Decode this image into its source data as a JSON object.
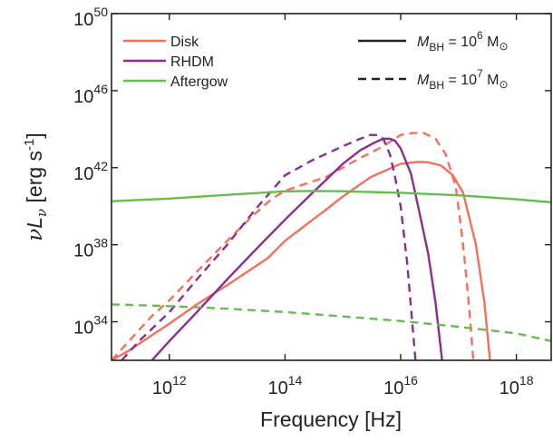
{
  "chart_data": {
    "type": "line",
    "title": "",
    "xlabel": "Frequency [Hz]",
    "ylabel": "νL_ν [erg s^-1]",
    "ylabel_parts": {
      "nu": "ν",
      "L": "L",
      "sub": "ν",
      "units": " [erg s",
      "sup": "-1",
      "close": "]"
    },
    "x_scale": "log",
    "y_scale": "log",
    "xlim": [
      100000000000.0,
      4e+18
    ],
    "ylim": [
      1e+32,
      1e+50
    ],
    "x_ticks": [
      {
        "value": 1000000000000.0,
        "base": "10",
        "exp": "12"
      },
      {
        "value": 100000000000000.0,
        "base": "10",
        "exp": "14"
      },
      {
        "value": 1e+16,
        "base": "10",
        "exp": "16"
      },
      {
        "value": 1e+18,
        "base": "10",
        "exp": "18"
      }
    ],
    "y_ticks": [
      {
        "value": 1e+34,
        "base": "10",
        "exp": "34"
      },
      {
        "value": 1e+38,
        "base": "10",
        "exp": "38"
      },
      {
        "value": 1e+42,
        "base": "10",
        "exp": "42"
      },
      {
        "value": 1e+46,
        "base": "10",
        "exp": "46"
      },
      {
        "value": 1e+50,
        "base": "10",
        "exp": "50"
      }
    ],
    "grid": false,
    "legend_placement": "top-left",
    "style_legend_placement": "top-right",
    "legend": [
      {
        "label": "Disk",
        "color": "#f4705a"
      },
      {
        "label": "RHDM",
        "color": "#8b2d8f"
      },
      {
        "label": "Aftergow",
        "color": "#63bd4f"
      }
    ],
    "style_legend": [
      {
        "dash": "solid",
        "prefix": "M",
        "sub": "BH",
        "eq": " = 10",
        "exp": "6",
        "unit": " M",
        "sun": "⊙"
      },
      {
        "dash": "dashed",
        "prefix": "M",
        "sub": "BH",
        "eq": " = 10",
        "exp": "7",
        "unit": " M",
        "sun": "⊙"
      }
    ],
    "series": [
      {
        "name": "Disk",
        "mass": "10^6",
        "color": "#f4705a",
        "dash": "solid",
        "x": [
          100000000000.0,
          200000000000.0,
          500000000000.0,
          1000000000000.0,
          3000000000000.0,
          10000000000000.0,
          50000000000000.0,
          100000000000000.0,
          500000000000000.0,
          1000000000000000.0,
          3000000000000000.0,
          1e+16,
          2e+16,
          3e+16,
          5e+16,
          8e+16,
          1.2e+17,
          2e+17,
          2.8e+17,
          3.5e+17
        ],
        "y": [
          1e+32,
          3.2e+32,
          2e+33,
          8e+33,
          8e+34,
          8e+35,
          2e+37,
          1.6e+38,
          6.3e+39,
          3.2e+40,
          3.2e+41,
          1.6e+42,
          2e+42,
          1.9e+42,
          1.3e+42,
          4e+41,
          5e+40,
          1e+38,
          1e+35,
          1e+32
        ]
      },
      {
        "name": "Disk",
        "mass": "10^7",
        "color": "#f4705a",
        "dash": "dashed",
        "x": [
          100000000000.0,
          200000000000.0,
          500000000000.0,
          1000000000000.0,
          3000000000000.0,
          10000000000000.0,
          30000000000000.0,
          60000000000000.0,
          100000000000000.0,
          200000000000000.0,
          500000000000000.0,
          1000000000000000.0,
          2000000000000000.0,
          5000000000000000.0,
          1e+16,
          1.6e+16,
          2.5e+16,
          4e+16,
          6e+16,
          9e+16,
          1.2e+17,
          1.5e+17,
          1.8e+17
        ],
        "y": [
          1e+32,
          1e+33,
          2e+34,
          1.3e+35,
          4e+36,
          1.6e+38,
          4e+39,
          2.5e+40,
          6.3e+40,
          1.3e+41,
          3.2e+41,
          1e+42,
          3.2e+42,
          1.3e+43,
          5e+43,
          6.3e+43,
          6.3e+43,
          3.2e+43,
          5e+42,
          1e+41,
          1e+38,
          1e+35,
          1e+32
        ]
      },
      {
        "name": "RHDM",
        "mass": "10^6",
        "color": "#8b2d8f",
        "dash": "solid",
        "x": [
          500000000000.0,
          1000000000000.0,
          3000000000000.0,
          10000000000000.0,
          30000000000000.0,
          100000000000000.0,
          300000000000000.0,
          1000000000000000.0,
          2000000000000000.0,
          3500000000000000.0,
          5000000000000000.0,
          6500000000000000.0,
          8000000000000000.0,
          1e+16,
          1.5e+16,
          2e+16,
          3e+16,
          4e+16,
          5.2e+16
        ],
        "y": [
          1e+32,
          1e+33,
          3.2e+34,
          1.6e+36,
          5e+37,
          2e+39,
          5e+40,
          1.6e+42,
          8e+42,
          2e+43,
          3.2e+43,
          3.2e+43,
          2.5e+43,
          1e+43,
          5e+41,
          1e+40,
          3.2e+37,
          1e+35,
          1e+32
        ]
      },
      {
        "name": "RHDM",
        "mass": "10^7",
        "color": "#8b2d8f",
        "dash": "dashed",
        "x": [
          150000000000.0,
          300000000000.0,
          1000000000000.0,
          3000000000000.0,
          10000000000000.0,
          30000000000000.0,
          100000000000000.0,
          300000000000000.0,
          1000000000000000.0,
          2000000000000000.0,
          3000000000000000.0,
          4000000000000000.0,
          5000000000000000.0,
          6500000000000000.0,
          8000000000000000.0,
          1e+16,
          1.3e+16,
          1.8e+16
        ],
        "y": [
          1e+32,
          1e+33,
          3.2e+34,
          1.6e+36,
          1e+38,
          6.3e+39,
          4e+41,
          2.5e+42,
          1.3e+43,
          3.2e+43,
          5e+43,
          5e+43,
          3.2e+43,
          5e+42,
          3.2e+41,
          1e+40,
          1e+37,
          1e+32
        ]
      },
      {
        "name": "Aftergow",
        "mass": "10^6",
        "color": "#63bd4f",
        "dash": "solid",
        "x": [
          100000000000.0,
          1000000000000.0,
          10000000000000.0,
          100000000000000.0,
          300000000000000.0,
          1000000000000000.0,
          1e+16,
          1e+17,
          1e+18,
          4e+18
        ],
        "y": [
          1.8e+40,
          2.5e+40,
          3.9e+40,
          5.9e+40,
          6.2e+40,
          6e+40,
          5e+40,
          3.7e+40,
          2.3e+40,
          1.6e+40
        ]
      },
      {
        "name": "Aftergow",
        "mass": "10^7",
        "color": "#63bd4f",
        "dash": "dashed",
        "x": [
          100000000000.0,
          1000000000000.0,
          10000000000000.0,
          100000000000000.0,
          1000000000000000.0,
          1e+16,
          1e+17,
          1e+18,
          4e+18
        ],
        "y": [
          8e+34,
          6.5e+34,
          4.8e+34,
          3.2e+34,
          1.9e+34,
          1.1e+34,
          5.5e+33,
          2.5e+33,
          1e+33
        ]
      }
    ]
  }
}
